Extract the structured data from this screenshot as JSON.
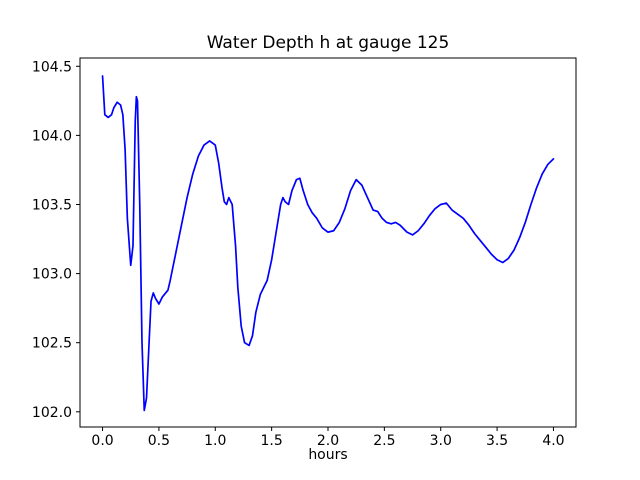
{
  "chart_data": {
    "type": "line",
    "title": "Water Depth h at gauge 125",
    "xlabel": "hours",
    "ylabel": "",
    "xlim": [
      -0.2,
      4.2
    ],
    "ylim": [
      101.89,
      104.56
    ],
    "xticks": [
      0.0,
      0.5,
      1.0,
      1.5,
      2.0,
      2.5,
      3.0,
      3.5,
      4.0
    ],
    "yticks": [
      102.0,
      102.5,
      103.0,
      103.5,
      104.0,
      104.5
    ],
    "grid": false,
    "legend": null,
    "line_color": "#0000ff",
    "x": [
      0.0,
      0.02,
      0.05,
      0.08,
      0.1,
      0.13,
      0.16,
      0.18,
      0.2,
      0.22,
      0.25,
      0.27,
      0.29,
      0.3,
      0.31,
      0.33,
      0.35,
      0.37,
      0.39,
      0.41,
      0.43,
      0.45,
      0.47,
      0.5,
      0.53,
      0.55,
      0.58,
      0.6,
      0.65,
      0.7,
      0.75,
      0.8,
      0.85,
      0.9,
      0.95,
      1.0,
      1.03,
      1.06,
      1.08,
      1.1,
      1.12,
      1.15,
      1.18,
      1.2,
      1.23,
      1.26,
      1.3,
      1.33,
      1.36,
      1.4,
      1.43,
      1.46,
      1.5,
      1.55,
      1.58,
      1.6,
      1.62,
      1.65,
      1.68,
      1.72,
      1.75,
      1.78,
      1.82,
      1.86,
      1.9,
      1.95,
      2.0,
      2.05,
      2.1,
      2.15,
      2.2,
      2.25,
      2.3,
      2.35,
      2.4,
      2.44,
      2.48,
      2.52,
      2.56,
      2.6,
      2.64,
      2.7,
      2.75,
      2.8,
      2.85,
      2.9,
      2.95,
      3.0,
      3.05,
      3.1,
      3.15,
      3.2,
      3.25,
      3.3,
      3.35,
      3.4,
      3.45,
      3.5,
      3.55,
      3.6,
      3.65,
      3.7,
      3.75,
      3.8,
      3.85,
      3.9,
      3.95,
      4.0
    ],
    "y": [
      104.43,
      104.15,
      104.13,
      104.15,
      104.2,
      104.24,
      104.22,
      104.15,
      103.9,
      103.4,
      103.06,
      103.2,
      104.1,
      104.28,
      104.25,
      103.5,
      102.5,
      102.01,
      102.1,
      102.45,
      102.8,
      102.86,
      102.82,
      102.78,
      102.83,
      102.85,
      102.88,
      102.95,
      103.15,
      103.35,
      103.55,
      103.72,
      103.85,
      103.93,
      103.96,
      103.93,
      103.8,
      103.62,
      103.52,
      103.5,
      103.55,
      103.5,
      103.2,
      102.9,
      102.62,
      102.5,
      102.48,
      102.55,
      102.72,
      102.85,
      102.9,
      102.95,
      103.1,
      103.35,
      103.5,
      103.55,
      103.52,
      103.5,
      103.6,
      103.68,
      103.69,
      103.6,
      103.5,
      103.44,
      103.4,
      103.33,
      103.3,
      103.31,
      103.37,
      103.47,
      103.6,
      103.68,
      103.64,
      103.55,
      103.46,
      103.45,
      103.4,
      103.37,
      103.36,
      103.37,
      103.35,
      103.3,
      103.28,
      103.31,
      103.36,
      103.42,
      103.47,
      103.5,
      103.51,
      103.46,
      103.43,
      103.4,
      103.35,
      103.29,
      103.24,
      103.19,
      103.14,
      103.1,
      103.08,
      103.11,
      103.17,
      103.26,
      103.37,
      103.5,
      103.62,
      103.72,
      103.79,
      103.83
    ]
  }
}
